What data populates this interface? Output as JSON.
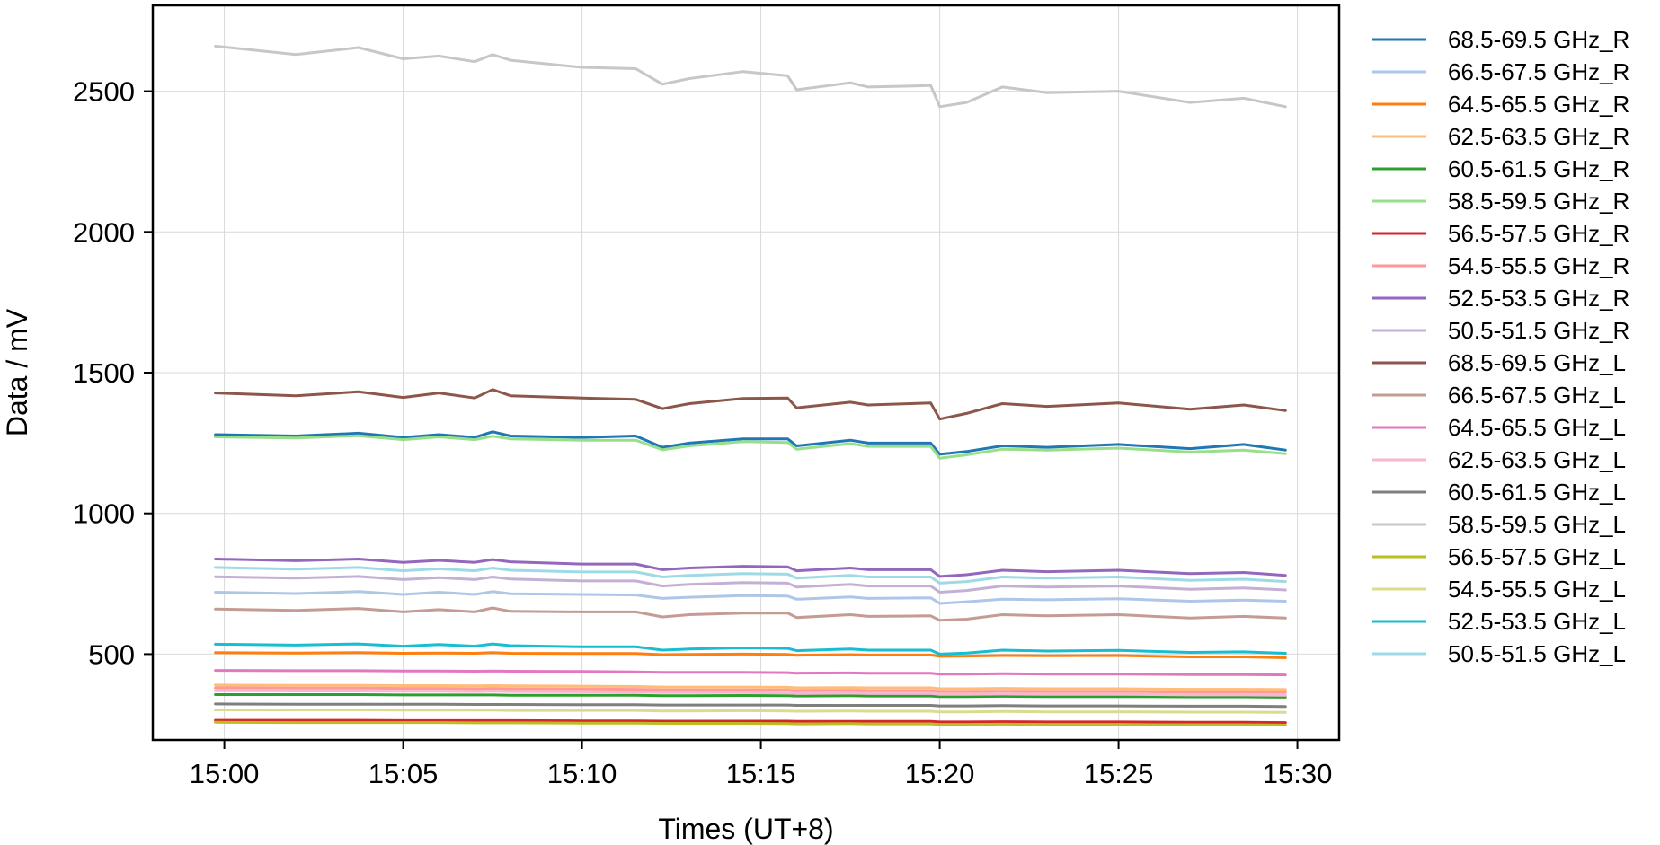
{
  "chart_data": {
    "type": "line",
    "title": "",
    "xlabel": "Times (UT+8)",
    "ylabel": "Data / mV",
    "x_ticks": [
      "15:00",
      "15:05",
      "15:10",
      "15:15",
      "15:20",
      "15:25",
      "15:30"
    ],
    "y_ticks": [
      "500",
      "1000",
      "1500",
      "2000",
      "2500"
    ],
    "xlim": [
      "14:58:00",
      "15:31:10"
    ],
    "ylim": [
      195,
      2805
    ],
    "grid": true,
    "legend_position": "right, outside plot area",
    "x": [
      "14:59:45",
      "15:02:00",
      "15:03:45",
      "15:05:00",
      "15:06:00",
      "15:07:00",
      "15:07:30",
      "15:08:00",
      "15:10:00",
      "15:11:30",
      "15:12:15",
      "15:13:00",
      "15:14:30",
      "15:15:45",
      "15:16:00",
      "15:17:30",
      "15:18:00",
      "15:19:45",
      "15:20:00",
      "15:20:45",
      "15:21:45",
      "15:23:00",
      "15:25:00",
      "15:27:00",
      "15:28:30",
      "15:29:40"
    ],
    "series": [
      {
        "name": "68.5-69.5 GHz_R",
        "color": "#1f77b4",
        "values": [
          1280,
          1275,
          1285,
          1270,
          1280,
          1270,
          1290,
          1275,
          1270,
          1275,
          1235,
          1250,
          1265,
          1265,
          1240,
          1260,
          1250,
          1250,
          1210,
          1220,
          1240,
          1235,
          1245,
          1230,
          1245,
          1225
        ]
      },
      {
        "name": "66.5-67.5 GHz_R",
        "color": "#aec7e8",
        "values": [
          720,
          715,
          722,
          712,
          720,
          712,
          722,
          714,
          712,
          710,
          698,
          702,
          708,
          706,
          695,
          703,
          698,
          700,
          680,
          686,
          695,
          693,
          697,
          688,
          692,
          688
        ]
      },
      {
        "name": "64.5-65.5 GHz_R",
        "color": "#ff7f0e",
        "values": [
          505,
          504,
          505,
          503,
          504,
          503,
          505,
          503,
          502,
          502,
          498,
          499,
          500,
          499,
          496,
          498,
          497,
          497,
          492,
          493,
          495,
          494,
          495,
          490,
          490,
          487
        ]
      },
      {
        "name": "62.5-63.5 GHz_R",
        "color": "#ffbb78",
        "values": [
          390,
          389,
          389,
          388,
          388,
          387,
          388,
          387,
          386,
          385,
          383,
          383,
          383,
          382,
          380,
          381,
          380,
          380,
          377,
          377,
          378,
          377,
          377,
          375,
          375,
          374
        ]
      },
      {
        "name": "60.5-61.5 GHz_R",
        "color": "#2ca02c",
        "values": [
          356,
          356,
          356,
          355,
          355,
          355,
          355,
          354,
          354,
          354,
          352,
          352,
          353,
          352,
          351,
          352,
          351,
          351,
          349,
          349,
          350,
          349,
          349,
          348,
          348,
          347
        ]
      },
      {
        "name": "58.5-59.5 GHz_R",
        "color": "#98df8a",
        "values": [
          1272,
          1268,
          1276,
          1262,
          1272,
          1262,
          1274,
          1265,
          1260,
          1260,
          1226,
          1240,
          1255,
          1252,
          1228,
          1248,
          1238,
          1238,
          1196,
          1208,
          1228,
          1225,
          1232,
          1218,
          1225,
          1212
        ]
      },
      {
        "name": "56.5-57.5 GHz_R",
        "color": "#d62728",
        "values": [
          265,
          265,
          265,
          264,
          264,
          264,
          264,
          264,
          263,
          263,
          262,
          262,
          262,
          262,
          261,
          261,
          261,
          261,
          259,
          259,
          260,
          259,
          259,
          258,
          258,
          257
        ]
      },
      {
        "name": "54.5-55.5 GHz_R",
        "color": "#ff9896",
        "values": [
          380,
          379,
          379,
          378,
          378,
          377,
          378,
          377,
          376,
          375,
          373,
          373,
          373,
          372,
          370,
          371,
          370,
          370,
          367,
          367,
          368,
          367,
          367,
          365,
          365,
          364
        ]
      },
      {
        "name": "52.5-53.5 GHz_R",
        "color": "#9467bd",
        "values": [
          838,
          832,
          838,
          826,
          833,
          826,
          836,
          828,
          820,
          820,
          800,
          806,
          812,
          810,
          796,
          806,
          800,
          800,
          776,
          782,
          798,
          793,
          798,
          786,
          790,
          780
        ]
      },
      {
        "name": "50.5-51.5 GHz_R",
        "color": "#c5b0d5",
        "values": [
          775,
          770,
          776,
          765,
          772,
          765,
          774,
          767,
          760,
          760,
          742,
          748,
          754,
          752,
          738,
          748,
          742,
          742,
          720,
          726,
          742,
          738,
          742,
          730,
          735,
          728
        ]
      },
      {
        "name": "68.5-69.5 GHz_L",
        "color": "#8c564b",
        "values": [
          1428,
          1418,
          1432,
          1412,
          1428,
          1410,
          1440,
          1418,
          1410,
          1405,
          1372,
          1390,
          1408,
          1410,
          1375,
          1395,
          1385,
          1392,
          1335,
          1355,
          1390,
          1380,
          1392,
          1370,
          1385,
          1365
        ]
      },
      {
        "name": "66.5-67.5 GHz_L",
        "color": "#c49c94",
        "values": [
          660,
          655,
          662,
          650,
          658,
          650,
          664,
          652,
          650,
          650,
          632,
          640,
          646,
          646,
          630,
          640,
          634,
          636,
          620,
          624,
          640,
          636,
          640,
          628,
          634,
          628
        ]
      },
      {
        "name": "64.5-65.5 GHz_L",
        "color": "#e377c2",
        "values": [
          442,
          441,
          441,
          440,
          440,
          439,
          440,
          439,
          438,
          437,
          435,
          435,
          435,
          434,
          432,
          433,
          432,
          432,
          429,
          429,
          430,
          429,
          429,
          427,
          427,
          426
        ]
      },
      {
        "name": "62.5-63.5 GHz_L",
        "color": "#f7b6d2",
        "values": [
          370,
          369,
          369,
          368,
          368,
          367,
          368,
          367,
          366,
          365,
          363,
          363,
          363,
          362,
          360,
          361,
          360,
          360,
          357,
          357,
          358,
          357,
          357,
          355,
          355,
          354
        ]
      },
      {
        "name": "60.5-61.5 GHz_L",
        "color": "#7f7f7f",
        "values": [
          323,
          322,
          322,
          322,
          322,
          321,
          321,
          321,
          320,
          320,
          319,
          319,
          319,
          319,
          318,
          318,
          318,
          318,
          316,
          316,
          317,
          316,
          316,
          315,
          315,
          314
        ]
      },
      {
        "name": "58.5-59.5 GHz_L",
        "color": "#c7c7c7",
        "values": [
          2660,
          2630,
          2655,
          2615,
          2625,
          2605,
          2630,
          2610,
          2585,
          2580,
          2525,
          2545,
          2570,
          2555,
          2505,
          2530,
          2515,
          2520,
          2445,
          2460,
          2515,
          2495,
          2500,
          2460,
          2475,
          2445
        ]
      },
      {
        "name": "56.5-57.5 GHz_L",
        "color": "#bcbd22",
        "values": [
          258,
          257,
          257,
          257,
          257,
          256,
          256,
          256,
          255,
          255,
          254,
          254,
          254,
          253,
          252,
          253,
          252,
          252,
          250,
          250,
          251,
          250,
          250,
          249,
          249,
          248
        ]
      },
      {
        "name": "54.5-55.5 GHz_L",
        "color": "#dbdb8d",
        "values": [
          302,
          302,
          302,
          301,
          301,
          301,
          301,
          300,
          300,
          300,
          298,
          298,
          299,
          298,
          297,
          298,
          297,
          297,
          295,
          295,
          296,
          295,
          295,
          294,
          294,
          293
        ]
      },
      {
        "name": "52.5-53.5 GHz_L",
        "color": "#17becf",
        "values": [
          535,
          532,
          536,
          528,
          534,
          528,
          536,
          530,
          526,
          526,
          514,
          518,
          522,
          520,
          512,
          518,
          514,
          514,
          500,
          504,
          514,
          511,
          513,
          506,
          508,
          503
        ]
      },
      {
        "name": "50.5-51.5 GHz_L",
        "color": "#9edae5",
        "values": [
          808,
          802,
          808,
          796,
          803,
          796,
          806,
          798,
          792,
          792,
          774,
          780,
          786,
          784,
          770,
          780,
          774,
          774,
          752,
          758,
          774,
          770,
          774,
          762,
          766,
          758
        ]
      }
    ]
  }
}
